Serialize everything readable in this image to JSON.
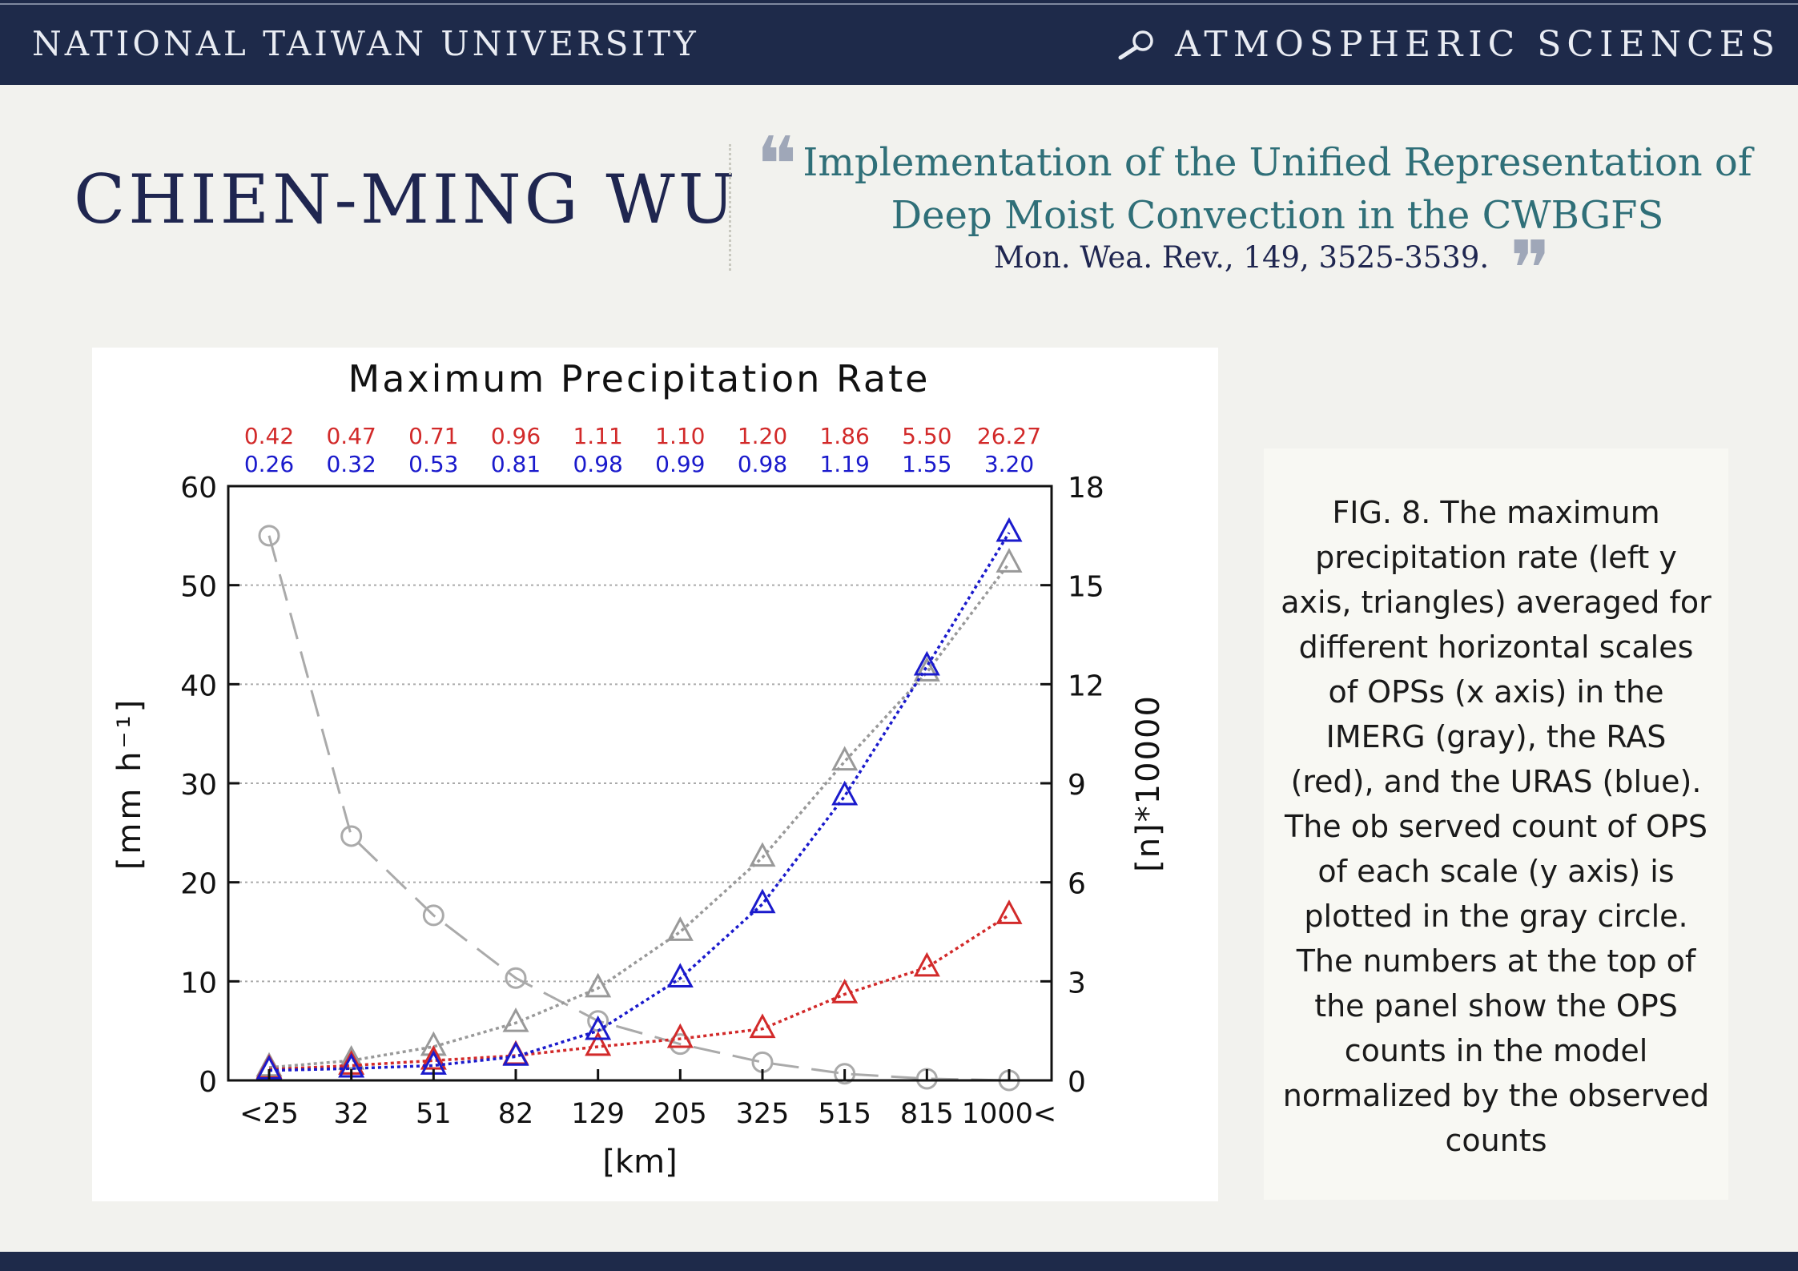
{
  "header": {
    "left_title": "NATIONAL TAIWAN UNIVERSITY",
    "right_title": "ATMOSPHERIC SCIENCES",
    "right_icon": "magnifier-icon"
  },
  "author": "CHIEN-MING WU",
  "publication": {
    "title": "Implementation of the Unified Representation of Deep Moist Convection in the CWBGFS",
    "citation": "Mon. Wea. Rev., 149, 3525-3539.",
    "open_quote": "❝",
    "close_quote": "❞"
  },
  "caption": "FIG. 8. The maximum precipitation rate (left y axis, triangles) averaged for different horizontal scales of OPSs (x axis) in the IMERG (gray), the RAS (red), and the URAS (blue). The ob served count of OPS of each scale (y axis) is plotted in the gray circle. The numbers at the top of the panel show the OPS counts in the model normalized by the observed counts",
  "colors": {
    "header_bg": "#1e2a4a",
    "accent_teal": "#2f6f78",
    "imerg": "#999999",
    "ras": "#d22a2a",
    "uras": "#1a1acc",
    "count": "#aaaaaa"
  },
  "chart_data": {
    "type": "line",
    "title": "Maximum Precipitation Rate",
    "xlabel": "[km]",
    "ylabel_left": "[mm h⁻¹]",
    "ylabel_right": "[n]*10000",
    "categories": [
      "<25",
      "32",
      "51",
      "82",
      "129",
      "205",
      "325",
      "515",
      "815",
      "1000<"
    ],
    "ylim_left": [
      0,
      60
    ],
    "yticks_left": [
      "0",
      "10",
      "20",
      "30",
      "40",
      "50",
      "60"
    ],
    "ylim_right": [
      0,
      18
    ],
    "yticks_right": [
      "0",
      "3",
      "6",
      "9",
      "12",
      "15",
      "18"
    ],
    "grid": "horizontal dotted",
    "top_ratios_ras": [
      "0.42",
      "0.47",
      "0.71",
      "0.96",
      "1.11",
      "1.10",
      "1.20",
      "1.86",
      "5.50",
      "26.27"
    ],
    "top_ratios_uras": [
      "0.26",
      "0.32",
      "0.53",
      "0.81",
      "0.98",
      "0.99",
      "0.98",
      "1.19",
      "1.55",
      "3.20"
    ],
    "series": [
      {
        "key": "imerg",
        "axis": "left",
        "marker": "triangle",
        "values": [
          1.3,
          2.0,
          3.4,
          5.8,
          9.3,
          15.0,
          22.5,
          32.2,
          41.2,
          52.2
        ]
      },
      {
        "key": "ras",
        "axis": "left",
        "marker": "triangle",
        "values": [
          1.1,
          1.5,
          2.0,
          2.5,
          3.4,
          4.2,
          5.2,
          8.7,
          11.4,
          16.7
        ]
      },
      {
        "key": "uras",
        "axis": "left",
        "marker": "triangle",
        "values": [
          1.0,
          1.2,
          1.5,
          2.4,
          5.0,
          10.3,
          17.8,
          28.7,
          41.8,
          55.3
        ]
      },
      {
        "key": "count",
        "axis": "right",
        "marker": "circle",
        "values": [
          16.5,
          7.4,
          5.0,
          3.1,
          1.8,
          1.1,
          0.55,
          0.2,
          0.05,
          0.0
        ]
      }
    ]
  }
}
